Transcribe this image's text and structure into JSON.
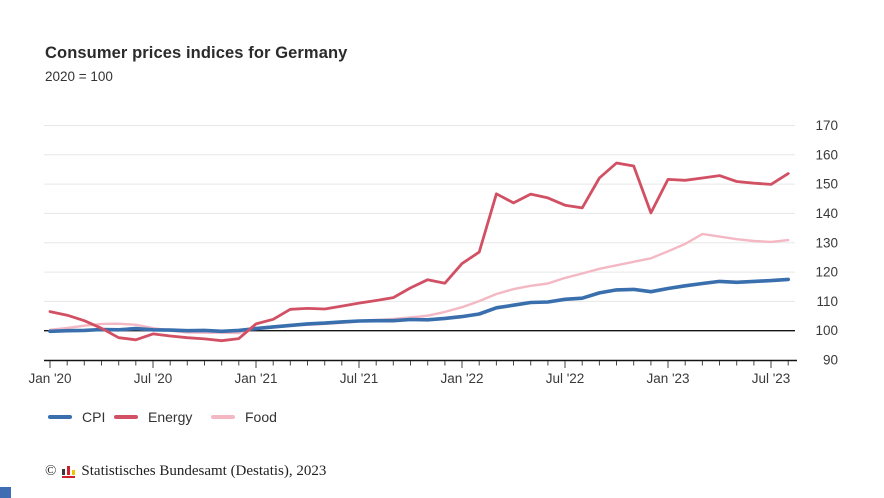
{
  "header": {
    "title": "Consumer prices indices for Germany",
    "subtitle": "2020 = 100"
  },
  "chart_data": {
    "type": "line",
    "title": "Consumer prices indices for Germany",
    "subtitle": "2020 = 100",
    "grid": true,
    "legend_position": "bottom-left",
    "baseline": 100,
    "ylim": [
      90,
      170
    ],
    "y_ticks": [
      90,
      100,
      110,
      120,
      130,
      140,
      150,
      160,
      170
    ],
    "x_tick_labels": [
      "Jan '20",
      "Jul '20",
      "Jan '21",
      "Jul '21",
      "Jan '22",
      "Jul '22",
      "Jan '23",
      "Jul '23"
    ],
    "x": [
      "Jan '20",
      "Feb '20",
      "Mar '20",
      "Apr '20",
      "May '20",
      "Jun '20",
      "Jul '20",
      "Aug '20",
      "Sep '20",
      "Oct '20",
      "Nov '20",
      "Dec '20",
      "Jan '21",
      "Feb '21",
      "Mar '21",
      "Apr '21",
      "May '21",
      "Jun '21",
      "Jul '21",
      "Aug '21",
      "Sep '21",
      "Oct '21",
      "Nov '21",
      "Dec '21",
      "Jan '22",
      "Feb '22",
      "Mar '22",
      "Apr '22",
      "May '22",
      "Jun '22",
      "Jul '22",
      "Aug '22",
      "Sep '22",
      "Oct '22",
      "Nov '22",
      "Dec '22",
      "Jan '23",
      "Feb '23",
      "Mar '23",
      "Apr '23",
      "May '23",
      "Jun '23",
      "Jul '23",
      "Aug '23"
    ],
    "series": [
      {
        "name": "Food",
        "color": "#f4b8c4",
        "stroke_width": 2.4,
        "values": [
          100.3,
          100.9,
          101.7,
          102.3,
          102.4,
          102.0,
          100.9,
          100.0,
          99.4,
          99.3,
          99.3,
          99.2,
          100.9,
          101.4,
          101.8,
          102.0,
          102.3,
          102.7,
          103.2,
          103.6,
          104.0,
          104.5,
          105.1,
          106.4,
          108.0,
          110.1,
          112.5,
          114.2,
          115.3,
          116.1,
          118.0,
          119.5,
          121.1,
          122.3,
          123.5,
          124.7,
          127.1,
          129.6,
          133.0,
          132.1,
          131.2,
          130.6,
          130.3,
          130.9
        ]
      },
      {
        "name": "CPI",
        "color": "#3a6fae",
        "stroke_width": 3.6,
        "values": [
          99.8,
          100.0,
          100.1,
          100.4,
          100.3,
          100.7,
          100.3,
          100.2,
          100.0,
          100.1,
          99.8,
          100.1,
          100.7,
          101.3,
          101.8,
          102.3,
          102.6,
          103.0,
          103.3,
          103.4,
          103.4,
          103.8,
          103.7,
          104.2,
          104.8,
          105.7,
          107.8,
          108.7,
          109.6,
          109.8,
          110.7,
          111.1,
          112.9,
          113.9,
          114.1,
          113.3,
          114.4,
          115.3,
          116.1,
          116.8,
          116.5,
          116.8,
          117.1,
          117.5
        ]
      },
      {
        "name": "Energy",
        "color": "#d25064",
        "stroke_width": 2.8,
        "values": [
          106.5,
          105.3,
          103.4,
          100.8,
          97.6,
          96.9,
          98.9,
          98.2,
          97.6,
          97.2,
          96.6,
          97.3,
          102.3,
          103.9,
          107.3,
          107.6,
          107.4,
          108.4,
          109.4,
          110.3,
          111.3,
          114.6,
          117.4,
          116.2,
          122.9,
          126.8,
          146.7,
          143.6,
          146.6,
          145.3,
          142.8,
          141.9,
          152.1,
          157.2,
          156.2,
          140.2,
          151.6,
          151.3,
          152.1,
          152.9,
          150.9,
          150.3,
          149.9,
          153.6
        ]
      }
    ]
  },
  "legend_order": [
    "CPI",
    "Energy",
    "Food"
  ],
  "footer": {
    "copyright": "©",
    "logo": "destatis-bar-chart-logo",
    "source": "Statistisches Bundesamt (Destatis), 2023"
  },
  "accents": {
    "corner_square": "#3f6db3"
  }
}
